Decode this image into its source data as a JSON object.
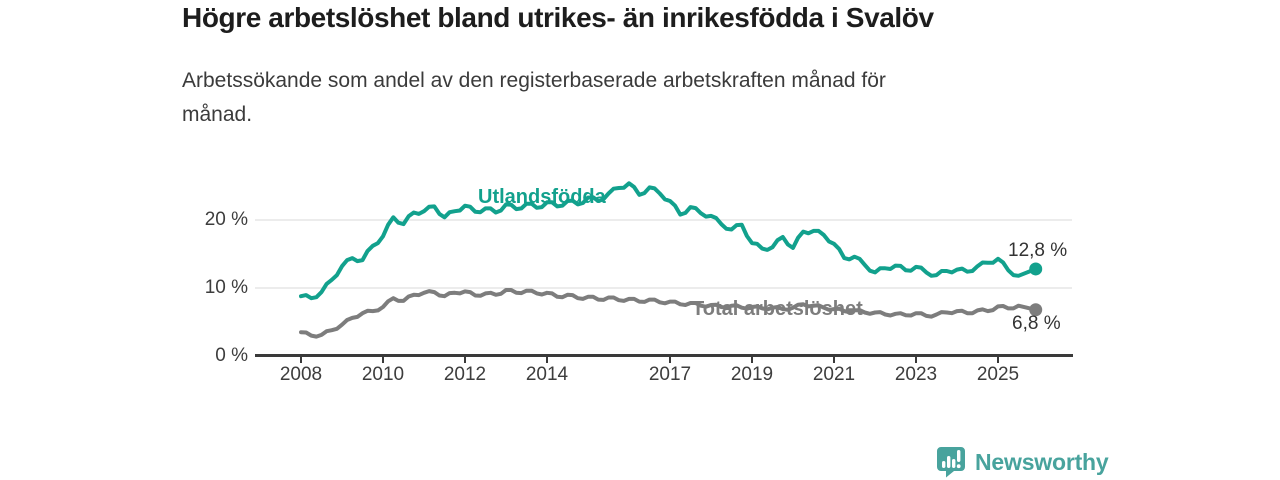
{
  "header": {
    "title": "Högre arbetslöshet bland utrikes- än inrikesfödda i Svalöv",
    "subtitle_line1": "Arbetssökande som andel av den registerbaserade arbetskraften månad för",
    "subtitle_line2": "månad."
  },
  "chart_data": {
    "type": "line",
    "title": "Högre arbetslöshet bland utrikes- än inrikesfödda i Svalöv",
    "subtitle": "Arbetssökande som andel av den registerbaserade arbetskraften månad för månad.",
    "xlabel": "",
    "ylabel": "",
    "ylim": [
      0,
      26
    ],
    "grid": "horizontal",
    "legend_position": "inline-labels",
    "y_axis": {
      "ticks": [
        {
          "label": "0 %",
          "value": 0
        },
        {
          "label": "10 %",
          "value": 10
        },
        {
          "label": "20 %",
          "value": 20
        }
      ]
    },
    "x_axis": {
      "ticks": [
        {
          "label": "2008",
          "year": 2008
        },
        {
          "label": "2010",
          "year": 2010
        },
        {
          "label": "2012",
          "year": 2012
        },
        {
          "label": "2014",
          "year": 2014
        },
        {
          "label": "2017",
          "year": 2017
        },
        {
          "label": "2019",
          "year": 2019
        },
        {
          "label": "2021",
          "year": 2021
        },
        {
          "label": "2023",
          "year": 2023
        },
        {
          "label": "2025",
          "year": 2025
        }
      ]
    },
    "series": [
      {
        "name": "Utlandsfödda",
        "color": "#12a18d",
        "end_label": "12,8 %",
        "end_value": 12.8,
        "points": [
          [
            2008.0,
            8.8
          ],
          [
            2008.25,
            8.5
          ],
          [
            2008.5,
            9.4
          ],
          [
            2008.75,
            11.2
          ],
          [
            2009.0,
            13.2
          ],
          [
            2009.25,
            14.4
          ],
          [
            2009.5,
            14.1
          ],
          [
            2009.75,
            16.2
          ],
          [
            2010.0,
            17.6
          ],
          [
            2010.25,
            20.4
          ],
          [
            2010.5,
            19.4
          ],
          [
            2010.75,
            21.1
          ],
          [
            2011.0,
            21.3
          ],
          [
            2011.25,
            22.0
          ],
          [
            2011.5,
            20.4
          ],
          [
            2011.75,
            21.3
          ],
          [
            2012.0,
            22.1
          ],
          [
            2012.25,
            21.2
          ],
          [
            2012.5,
            21.7
          ],
          [
            2012.75,
            21.1
          ],
          [
            2013.0,
            22.3
          ],
          [
            2013.25,
            21.6
          ],
          [
            2013.5,
            22.4
          ],
          [
            2013.75,
            21.8
          ],
          [
            2014.0,
            22.6
          ],
          [
            2014.25,
            22.0
          ],
          [
            2014.5,
            22.8
          ],
          [
            2014.75,
            22.3
          ],
          [
            2015.0,
            23.3
          ],
          [
            2015.25,
            22.8
          ],
          [
            2015.5,
            23.9
          ],
          [
            2015.75,
            24.7
          ],
          [
            2016.0,
            25.4
          ],
          [
            2016.25,
            23.7
          ],
          [
            2016.5,
            24.8
          ],
          [
            2016.75,
            23.9
          ],
          [
            2017.0,
            22.8
          ],
          [
            2017.25,
            20.8
          ],
          [
            2017.5,
            21.9
          ],
          [
            2017.75,
            21.0
          ],
          [
            2018.0,
            20.6
          ],
          [
            2018.25,
            19.4
          ],
          [
            2018.5,
            18.6
          ],
          [
            2018.75,
            19.3
          ],
          [
            2019.0,
            16.6
          ],
          [
            2019.25,
            15.8
          ],
          [
            2019.5,
            16.0
          ],
          [
            2019.75,
            17.5
          ],
          [
            2020.0,
            15.9
          ],
          [
            2020.25,
            18.3
          ],
          [
            2020.5,
            18.4
          ],
          [
            2020.75,
            17.8
          ],
          [
            2021.0,
            16.5
          ],
          [
            2021.25,
            14.4
          ],
          [
            2021.5,
            14.6
          ],
          [
            2021.75,
            13.4
          ],
          [
            2022.0,
            12.3
          ],
          [
            2022.25,
            12.9
          ],
          [
            2022.5,
            13.3
          ],
          [
            2022.75,
            12.6
          ],
          [
            2023.0,
            13.1
          ],
          [
            2023.25,
            12.3
          ],
          [
            2023.5,
            11.9
          ],
          [
            2023.75,
            12.5
          ],
          [
            2024.0,
            12.7
          ],
          [
            2024.25,
            12.4
          ],
          [
            2024.5,
            13.2
          ],
          [
            2024.75,
            13.7
          ],
          [
            2025.0,
            14.3
          ],
          [
            2025.25,
            12.6
          ],
          [
            2025.5,
            11.8
          ],
          [
            2025.92,
            12.8
          ]
        ]
      },
      {
        "name": "Total arbetslöshet",
        "color": "#7d7d7d",
        "end_label": "6,8 %",
        "end_value": 6.8,
        "points": [
          [
            2008.0,
            3.5
          ],
          [
            2008.25,
            3.0
          ],
          [
            2008.5,
            3.1
          ],
          [
            2008.75,
            3.8
          ],
          [
            2009.0,
            4.6
          ],
          [
            2009.25,
            5.6
          ],
          [
            2009.5,
            6.3
          ],
          [
            2009.75,
            6.6
          ],
          [
            2010.0,
            7.2
          ],
          [
            2010.25,
            8.5
          ],
          [
            2010.5,
            8.1
          ],
          [
            2010.75,
            9.0
          ],
          [
            2011.0,
            9.3
          ],
          [
            2011.25,
            9.4
          ],
          [
            2011.5,
            8.8
          ],
          [
            2011.75,
            9.3
          ],
          [
            2012.0,
            9.5
          ],
          [
            2012.25,
            8.9
          ],
          [
            2012.5,
            9.2
          ],
          [
            2012.75,
            9.0
          ],
          [
            2013.0,
            9.7
          ],
          [
            2013.25,
            9.3
          ],
          [
            2013.5,
            9.6
          ],
          [
            2013.75,
            9.2
          ],
          [
            2014.0,
            9.3
          ],
          [
            2014.25,
            8.7
          ],
          [
            2014.5,
            9.0
          ],
          [
            2014.75,
            8.5
          ],
          [
            2015.0,
            8.7
          ],
          [
            2015.25,
            8.3
          ],
          [
            2015.5,
            8.6
          ],
          [
            2015.75,
            8.2
          ],
          [
            2016.0,
            8.4
          ],
          [
            2016.25,
            8.0
          ],
          [
            2016.5,
            8.3
          ],
          [
            2016.75,
            7.9
          ],
          [
            2017.0,
            8.0
          ],
          [
            2017.25,
            7.6
          ],
          [
            2017.5,
            7.8
          ],
          [
            2017.75,
            7.4
          ],
          [
            2018.0,
            7.5
          ],
          [
            2018.25,
            7.2
          ],
          [
            2018.5,
            7.4
          ],
          [
            2018.75,
            7.1
          ],
          [
            2019.0,
            7.2
          ],
          [
            2019.25,
            7.0
          ],
          [
            2019.5,
            7.1
          ],
          [
            2019.75,
            6.9
          ],
          [
            2020.0,
            7.1
          ],
          [
            2020.25,
            7.6
          ],
          [
            2020.5,
            7.4
          ],
          [
            2020.75,
            7.1
          ],
          [
            2021.0,
            6.9
          ],
          [
            2021.25,
            6.6
          ],
          [
            2021.5,
            6.7
          ],
          [
            2021.75,
            6.4
          ],
          [
            2022.0,
            6.4
          ],
          [
            2022.25,
            6.1
          ],
          [
            2022.5,
            6.2
          ],
          [
            2022.75,
            6.0
          ],
          [
            2023.0,
            6.3
          ],
          [
            2023.25,
            5.9
          ],
          [
            2023.5,
            6.1
          ],
          [
            2023.75,
            6.4
          ],
          [
            2024.0,
            6.6
          ],
          [
            2024.25,
            6.3
          ],
          [
            2024.5,
            6.7
          ],
          [
            2024.75,
            6.6
          ],
          [
            2025.0,
            7.3
          ],
          [
            2025.25,
            7.0
          ],
          [
            2025.5,
            7.4
          ],
          [
            2025.92,
            6.8
          ]
        ]
      }
    ]
  },
  "colors": {
    "accent_teal": "#12a18d",
    "line_gray": "#7d7d7d",
    "gridline": "#d9d9d9",
    "axis": "#3a3a3a",
    "text_dark": "#1d1d1d",
    "text_body": "#3b3b3b",
    "logo_teal": "#48a39d"
  },
  "footer": {
    "brand": "Newsworthy"
  }
}
